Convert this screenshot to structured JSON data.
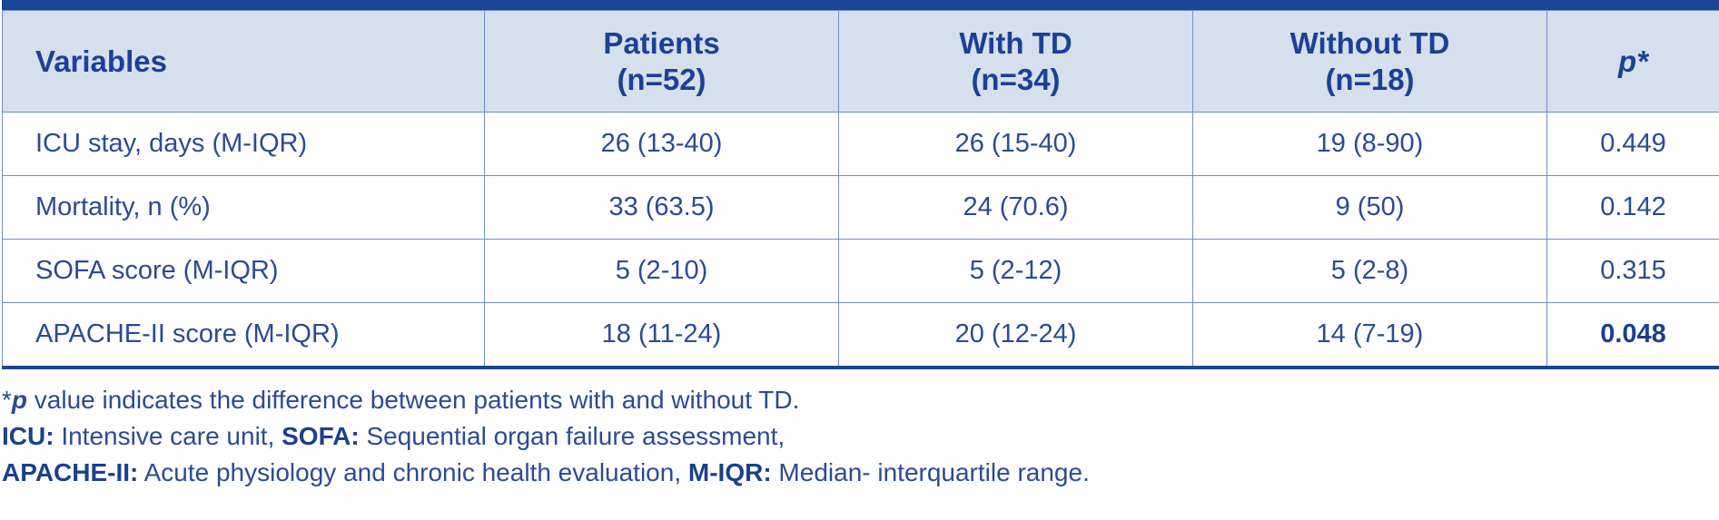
{
  "table": {
    "headers": [
      {
        "line1": "Variables",
        "line2": ""
      },
      {
        "line1": "Patients",
        "line2": "(n=52)"
      },
      {
        "line1": "With TD",
        "line2": "(n=34)"
      },
      {
        "line1": "Without TD",
        "line2": "(n=18)"
      },
      {
        "line1": "p*",
        "line2": ""
      }
    ],
    "rows": [
      {
        "variable": "ICU stay, days (M-IQR)",
        "patients": "26 (13-40)",
        "with_td": "26 (15-40)",
        "without_td": "19 (8-90)",
        "p": "0.449"
      },
      {
        "variable": "Mortality, n (%)",
        "patients": "33 (63.5)",
        "with_td": "24 (70.6)",
        "without_td": "9 (50)",
        "p": "0.142"
      },
      {
        "variable": "SOFA score (M-IQR)",
        "patients": "5 (2-10)",
        "with_td": "5 (2-12)",
        "without_td": "5 (2-8)",
        "p": "0.315"
      },
      {
        "variable": "APACHE-II score (M-IQR)",
        "patients": "18 (11-24)",
        "with_td": "20 (12-24)",
        "without_td": "14 (7-19)",
        "p": "0.048"
      }
    ]
  },
  "notes": {
    "line1": {
      "star": "*",
      "p": "p",
      "text": " value indicates the difference between patients with and without TD."
    },
    "line2": {
      "abbr1": "ICU:",
      "text1": " Intensive care unit, ",
      "abbr2": "SOFA:",
      "text2": " Sequential organ failure assessment,"
    },
    "line3": {
      "abbr1": "APACHE-II:",
      "text1": " Acute physiology and chronic health evaluation, ",
      "abbr2": "M-IQR:",
      "text2": " Median- interquartile range."
    }
  },
  "colors": {
    "header_bg": "#d6dfec",
    "accent_bar": "#1e4497",
    "text": "#2a4b95",
    "border": "#6f8fcb"
  }
}
